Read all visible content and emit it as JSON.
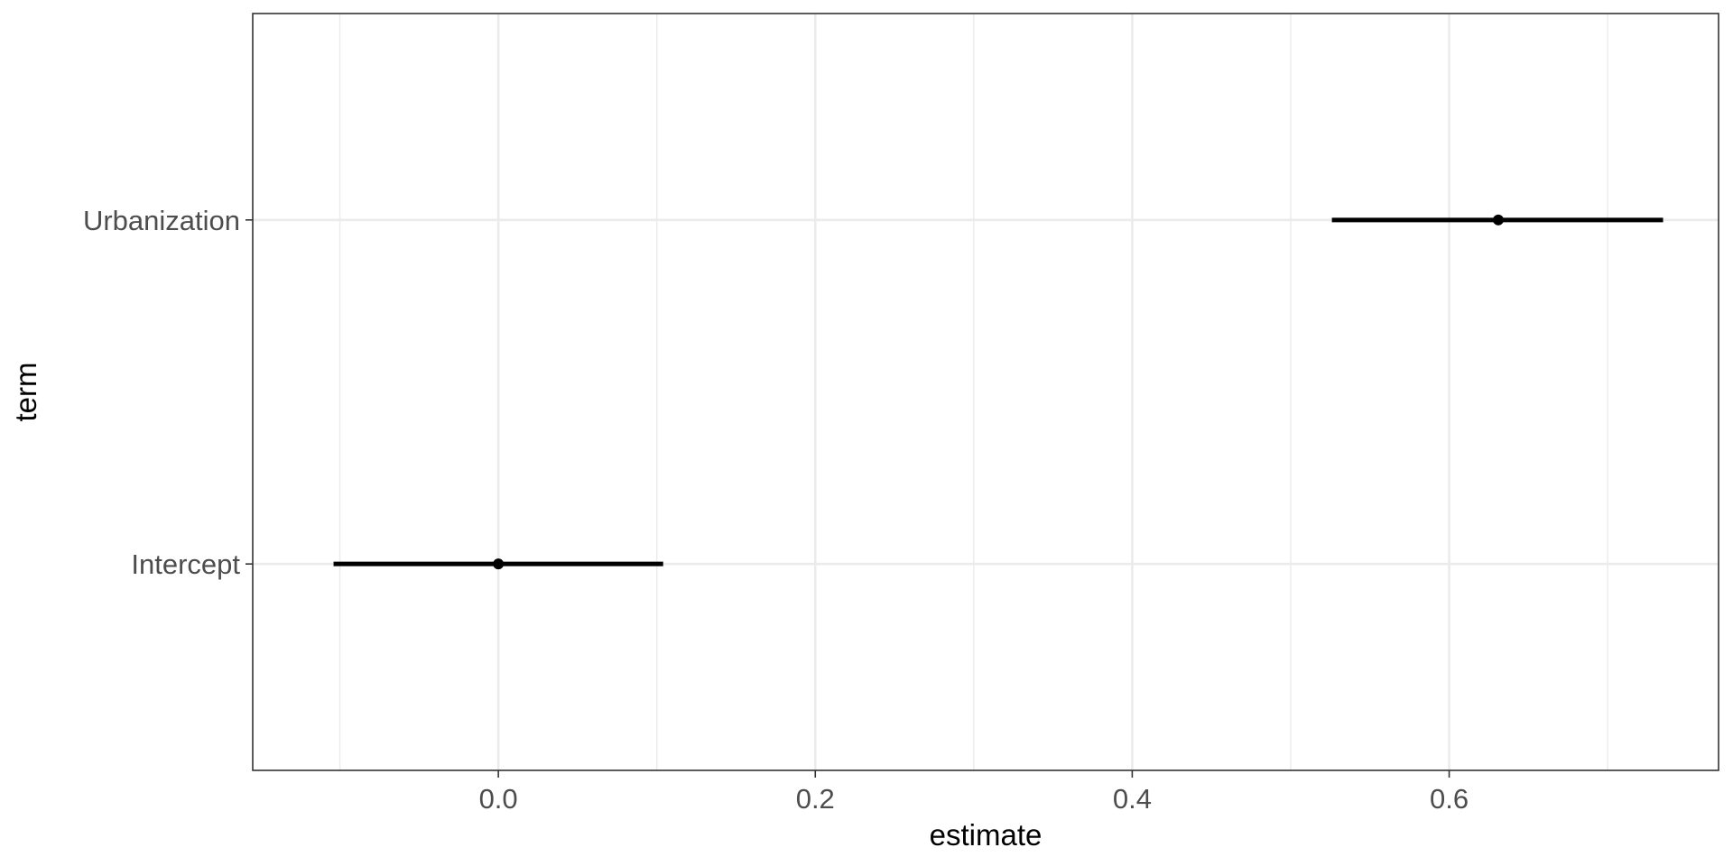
{
  "chart_data": {
    "type": "pointrange",
    "xlabel": "estimate",
    "ylabel": "term",
    "xlim": [
      -0.155,
      0.77
    ],
    "x_major_ticks": [
      0.0,
      0.2,
      0.4,
      0.6
    ],
    "x_tick_labels": [
      "0.0",
      "0.2",
      "0.4",
      "0.6"
    ],
    "x_minor_ticks": [
      -0.1,
      0.1,
      0.3,
      0.5,
      0.7
    ],
    "categories": [
      "Intercept",
      "Urbanization"
    ],
    "points": [
      {
        "term": "Intercept",
        "estimate": 0.0,
        "low": -0.104,
        "high": 0.104
      },
      {
        "term": "Urbanization",
        "estimate": 0.631,
        "low": 0.526,
        "high": 0.735
      }
    ],
    "grid": true,
    "colors": {
      "mark": "#000000",
      "grid": "#ebebeb",
      "panel_border": "#333333",
      "tick_text": "#4d4d4d"
    }
  }
}
